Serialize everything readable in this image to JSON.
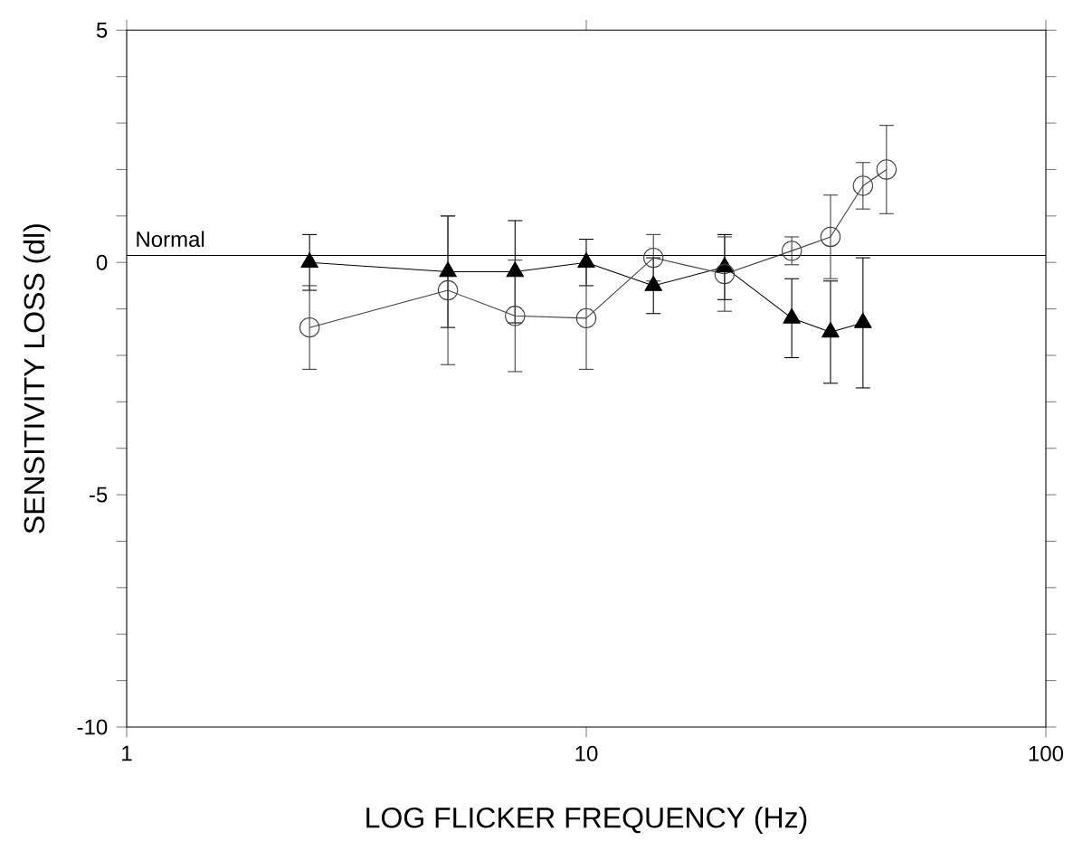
{
  "chart_data": {
    "type": "line",
    "xlabel": "LOG FLICKER FREQUENCY (Hz)",
    "ylabel": "SENSITIVITY LOSS (dl)",
    "log": "x",
    "xlim": [
      1,
      100
    ],
    "xticks": [
      1,
      10,
      100
    ],
    "ylim": [
      -10,
      5
    ],
    "yticks": [
      -10,
      {
        "value": -9,
        "label": null
      },
      {
        "value": -8,
        "label": null
      },
      {
        "value": -7,
        "label": null
      },
      {
        "value": -6,
        "label": null
      },
      -5,
      {
        "value": -4,
        "label": null
      },
      {
        "value": -3,
        "label": null
      },
      {
        "value": -2,
        "label": null
      },
      {
        "value": -1,
        "label": null
      },
      0,
      {
        "value": 1,
        "label": null
      },
      {
        "value": 2,
        "label": null
      },
      {
        "value": 3,
        "label": null
      },
      {
        "value": 4,
        "label": null
      },
      5
    ],
    "grid": false,
    "line_style": "solid",
    "ref_lines": [
      {
        "axis": "y",
        "value": 0.15,
        "label": "Normal",
        "color": "#000000"
      }
    ],
    "series": [
      {
        "color": "#000000",
        "marker": "triangle",
        "x": [
          2.5,
          5,
          7,
          10,
          14,
          20,
          28,
          34,
          40
        ],
        "values": [
          0,
          -0.2,
          -0.2,
          0,
          -0.5,
          -0.1,
          -1.2,
          -1.5,
          -1.3
        ],
        "errors": [
          0.6,
          1.2,
          1.1,
          0.5,
          0.6,
          0.7,
          0.85,
          1.1,
          1.4
        ]
      },
      {
        "color": "#404040",
        "marker": "circle",
        "x": [
          2.5,
          5,
          7,
          10,
          14,
          20,
          28,
          34,
          40,
          45
        ],
        "values": [
          -1.4,
          -0.6,
          -1.15,
          -1.2,
          0.1,
          -0.25,
          0.25,
          0.55,
          1.65,
          2.0
        ],
        "errors": [
          0.9,
          1.6,
          1.2,
          1.1,
          0.5,
          0.8,
          0.3,
          0.9,
          0.5,
          0.95
        ]
      }
    ]
  }
}
